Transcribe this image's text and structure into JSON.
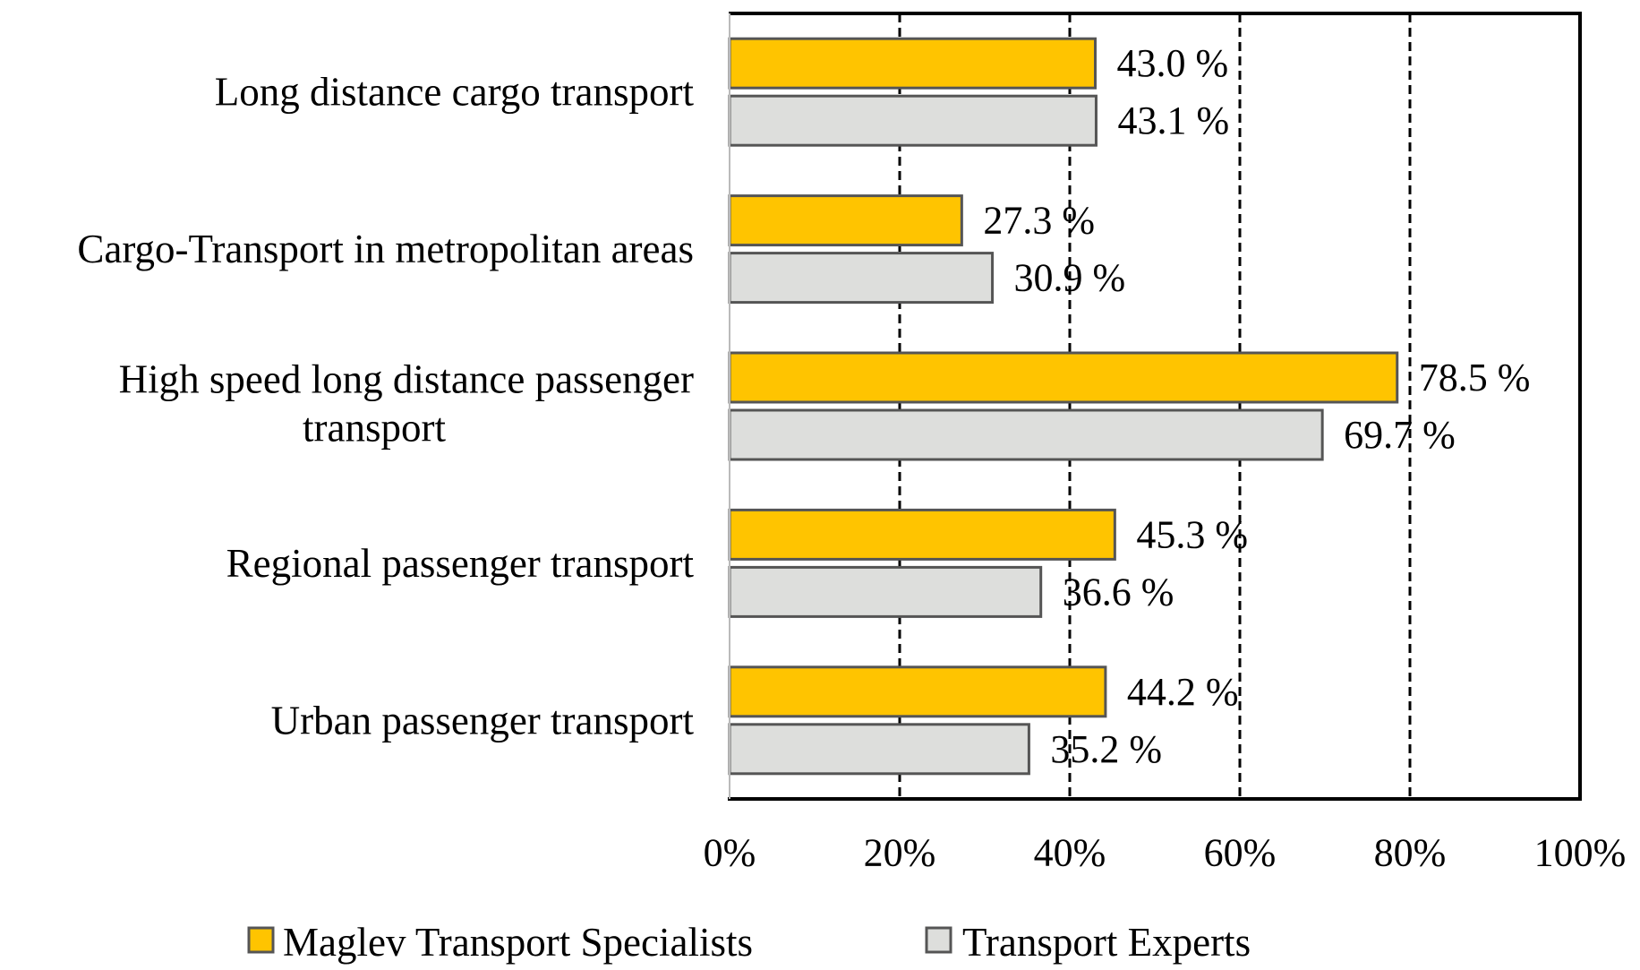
{
  "chart_data": {
    "type": "bar",
    "orientation": "horizontal",
    "title": "",
    "xlabel": "",
    "ylabel": "",
    "xlim": [
      0,
      100
    ],
    "x_unit": "%",
    "x_ticks": [
      0,
      20,
      40,
      60,
      80,
      100
    ],
    "x_tick_labels": [
      "0%",
      "20%",
      "40%",
      "60%",
      "80%",
      "100%"
    ],
    "grid": "vertical dashed",
    "legend_position": "bottom",
    "categories": [
      [
        "Long distance cargo transport"
      ],
      [
        "Cargo-Transport in metropolitan areas"
      ],
      [
        "High speed long distance passenger",
        "transport"
      ],
      [
        "Regional passenger transport"
      ],
      [
        "Urban passenger transport"
      ]
    ],
    "series": [
      {
        "name": "Maglev Transport Specialists",
        "color": "#FFC400",
        "values": [
          43.0,
          27.3,
          78.5,
          45.3,
          44.2
        ],
        "labels": [
          "43.0 %",
          "27.3 %",
          "78.5 %",
          "45.3 %",
          "44.2 %"
        ]
      },
      {
        "name": "Transport Experts",
        "color": "#DDDEDC",
        "values": [
          43.1,
          30.9,
          69.7,
          36.6,
          35.2
        ],
        "labels": [
          "43.1 %",
          "30.9 %",
          "69.7 %",
          "36.6 %",
          "35.2 %"
        ]
      }
    ],
    "colors": {
      "bar_border": "#555555",
      "axis": "#000000",
      "gridline": "#000000"
    }
  }
}
